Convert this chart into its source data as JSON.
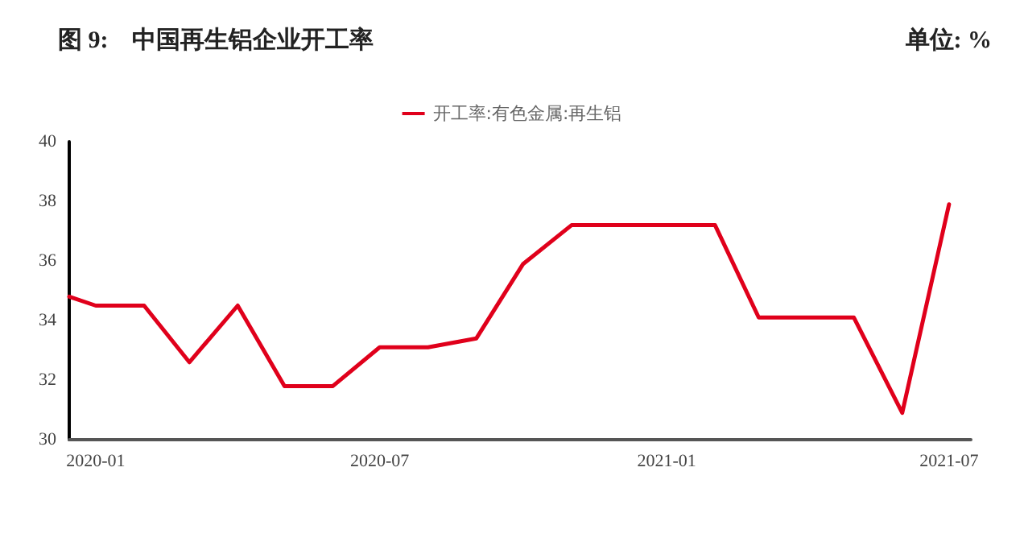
{
  "chart_data": {
    "type": "line",
    "title": "图 9:    中国再生铝企业开工率",
    "annotations": [
      "单位: %"
    ],
    "x": [
      "2019-12-15",
      "2020-01-01",
      "2020-02-01",
      "2020-03-01",
      "2020-04-01",
      "2020-05-01",
      "2020-06-01",
      "2020-07-01",
      "2020-08-01",
      "2020-09-01",
      "2020-10-01",
      "2020-11-01",
      "2020-12-01",
      "2021-01-01",
      "2021-02-01",
      "2021-03-01",
      "2021-04-01",
      "2021-05-01",
      "2021-06-01",
      "2021-07-01"
    ],
    "series": [
      {
        "name": "开工率:有色金属:再生铝",
        "color": "#e0001b",
        "values": [
          34.8,
          34.5,
          34.5,
          32.6,
          34.5,
          31.8,
          31.8,
          33.1,
          33.1,
          33.4,
          35.9,
          37.2,
          37.2,
          37.2,
          37.2,
          34.1,
          34.1,
          34.1,
          30.9,
          37.9
        ]
      }
    ],
    "xlim": [
      "2019-12-15",
      "2021-07-15"
    ],
    "xticks": [
      {
        "value": "2020-01-01",
        "label": "2020-01"
      },
      {
        "value": "2020-07-01",
        "label": "2020-07"
      },
      {
        "value": "2021-01-01",
        "label": "2021-01"
      },
      {
        "value": "2021-07-01",
        "label": "2021-07"
      }
    ],
    "ylim": [
      30,
      40
    ],
    "yticks": [
      30,
      32,
      34,
      36,
      38,
      40
    ],
    "grid": false,
    "legend": "top",
    "marker": "none",
    "line_style": "solid"
  }
}
